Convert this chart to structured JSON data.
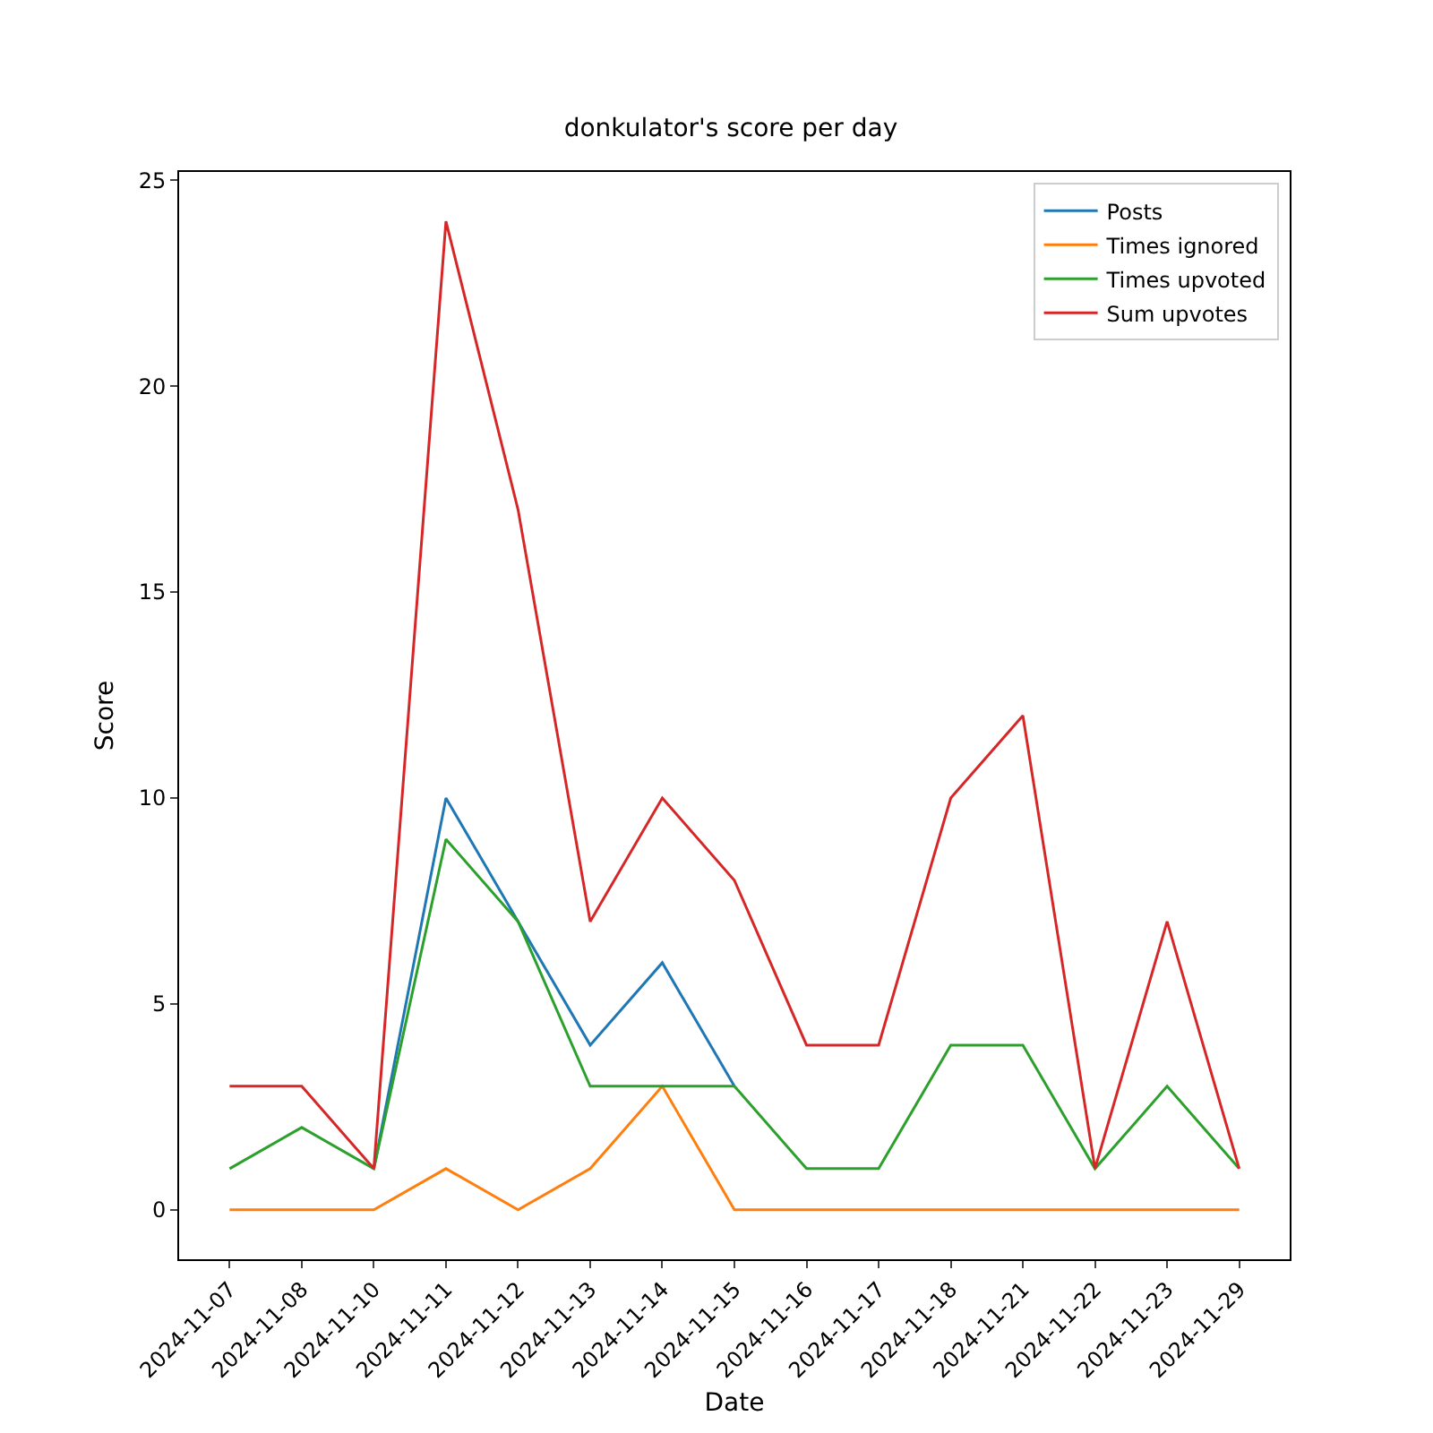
{
  "chart_data": {
    "type": "line",
    "title": "donkulator's score per day",
    "xlabel": "Date",
    "ylabel": "Score",
    "categories": [
      "2024-11-07",
      "2024-11-08",
      "2024-11-10",
      "2024-11-11",
      "2024-11-12",
      "2024-11-13",
      "2024-11-14",
      "2024-11-15",
      "2024-11-16",
      "2024-11-17",
      "2024-11-18",
      "2024-11-21",
      "2024-11-22",
      "2024-11-23",
      "2024-11-29"
    ],
    "series": [
      {
        "name": "Posts",
        "color": "#1f77b4",
        "values": [
          null,
          null,
          1,
          10,
          7,
          4,
          6,
          3,
          null,
          null,
          null,
          null,
          null,
          null,
          null
        ]
      },
      {
        "name": "Times ignored",
        "color": "#ff7f0e",
        "values": [
          0,
          0,
          0,
          1,
          0,
          1,
          3,
          0,
          0,
          0,
          0,
          0,
          0,
          0,
          0
        ]
      },
      {
        "name": "Times upvoted",
        "color": "#2ca02c",
        "values": [
          1,
          2,
          1,
          9,
          7,
          3,
          3,
          3,
          1,
          1,
          4,
          4,
          1,
          3,
          1
        ]
      },
      {
        "name": "Sum upvotes",
        "color": "#d62728",
        "values": [
          3,
          3,
          1,
          24,
          17,
          7,
          10,
          8,
          4,
          4,
          10,
          12,
          1,
          7,
          1
        ]
      }
    ],
    "ylim": [
      -1.2,
      25.2
    ],
    "yticks": [
      0,
      5,
      10,
      15,
      20,
      25
    ],
    "grid": false,
    "legend": "top right",
    "marker": "none",
    "line_style": "solid"
  }
}
